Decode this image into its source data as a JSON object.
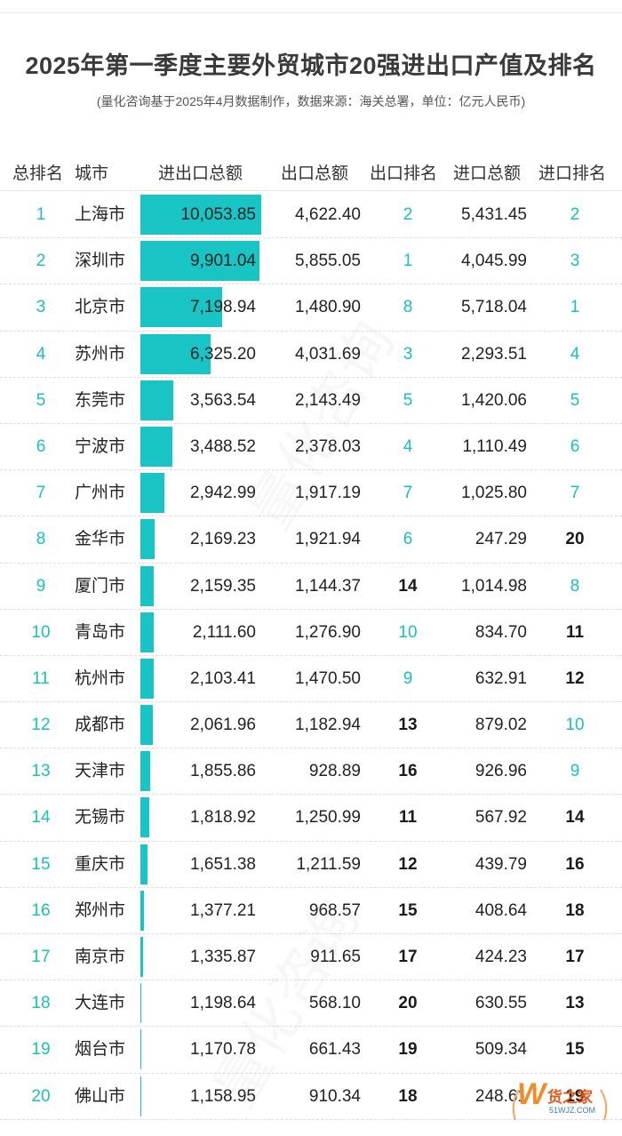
{
  "title": "2025年第一季度主要外贸城市20强进出口产值及排名",
  "subtitle": "(量化咨询基于2025年4月数据制作，数据来源：海关总署，单位：亿元人民币)",
  "columns": [
    "总排名",
    "城市",
    "进出口总额",
    "出口总额",
    "出口排名",
    "进口总额",
    "进口排名"
  ],
  "colors": {
    "accent": "#18c4c4",
    "rank_teal": "#18c0bf",
    "rank_dark": "#1a1a1a"
  },
  "logo": {
    "mark": "W",
    "text": "货之家",
    "sub": "51WJZ.COM"
  },
  "watermark": "量化咨询",
  "chart_data": {
    "type": "table",
    "title": "2025年第一季度主要外贸城市20强进出口产值及排名",
    "unit": "亿元人民币",
    "rows": [
      {
        "rank": "1",
        "city": "上海市",
        "total": "10,053.85",
        "total_value": 10053.85,
        "export": "4,622.40",
        "export_rank": "2",
        "import": "5,431.45",
        "import_rank": "2"
      },
      {
        "rank": "2",
        "city": "深圳市",
        "total": "9,901.04",
        "total_value": 9901.04,
        "export": "5,855.05",
        "export_rank": "1",
        "import": "4,045.99",
        "import_rank": "3"
      },
      {
        "rank": "3",
        "city": "北京市",
        "total": "7,198.94",
        "total_value": 7198.94,
        "export": "1,480.90",
        "export_rank": "8",
        "import": "5,718.04",
        "import_rank": "1"
      },
      {
        "rank": "4",
        "city": "苏州市",
        "total": "6,325.20",
        "total_value": 6325.2,
        "export": "4,031.69",
        "export_rank": "3",
        "import": "2,293.51",
        "import_rank": "4"
      },
      {
        "rank": "5",
        "city": "东莞市",
        "total": "3,563.54",
        "total_value": 3563.54,
        "export": "2,143.49",
        "export_rank": "5",
        "import": "1,420.06",
        "import_rank": "5"
      },
      {
        "rank": "6",
        "city": "宁波市",
        "total": "3,488.52",
        "total_value": 3488.52,
        "export": "2,378.03",
        "export_rank": "4",
        "import": "1,110.49",
        "import_rank": "6"
      },
      {
        "rank": "7",
        "city": "广州市",
        "total": "2,942.99",
        "total_value": 2942.99,
        "export": "1,917.19",
        "export_rank": "7",
        "import": "1,025.80",
        "import_rank": "7"
      },
      {
        "rank": "8",
        "city": "金华市",
        "total": "2,169.23",
        "total_value": 2169.23,
        "export": "1,921.94",
        "export_rank": "6",
        "import": "247.29",
        "import_rank": "20"
      },
      {
        "rank": "9",
        "city": "厦门市",
        "total": "2,159.35",
        "total_value": 2159.35,
        "export": "1,144.37",
        "export_rank": "14",
        "import": "1,014.98",
        "import_rank": "8"
      },
      {
        "rank": "10",
        "city": "青岛市",
        "total": "2,111.60",
        "total_value": 2111.6,
        "export": "1,276.90",
        "export_rank": "10",
        "import": "834.70",
        "import_rank": "11"
      },
      {
        "rank": "11",
        "city": "杭州市",
        "total": "2,103.41",
        "total_value": 2103.41,
        "export": "1,470.50",
        "export_rank": "9",
        "import": "632.91",
        "import_rank": "12"
      },
      {
        "rank": "12",
        "city": "成都市",
        "total": "2,061.96",
        "total_value": 2061.96,
        "export": "1,182.94",
        "export_rank": "13",
        "import": "879.02",
        "import_rank": "10"
      },
      {
        "rank": "13",
        "city": "天津市",
        "total": "1,855.86",
        "total_value": 1855.86,
        "export": "928.89",
        "export_rank": "16",
        "import": "926.96",
        "import_rank": "9"
      },
      {
        "rank": "14",
        "city": "无锡市",
        "total": "1,818.92",
        "total_value": 1818.92,
        "export": "1,250.99",
        "export_rank": "11",
        "import": "567.92",
        "import_rank": "14"
      },
      {
        "rank": "15",
        "city": "重庆市",
        "total": "1,651.38",
        "total_value": 1651.38,
        "export": "1,211.59",
        "export_rank": "12",
        "import": "439.79",
        "import_rank": "16"
      },
      {
        "rank": "16",
        "city": "郑州市",
        "total": "1,377.21",
        "total_value": 1377.21,
        "export": "968.57",
        "export_rank": "15",
        "import": "408.64",
        "import_rank": "18"
      },
      {
        "rank": "17",
        "city": "南京市",
        "total": "1,335.87",
        "total_value": 1335.87,
        "export": "911.65",
        "export_rank": "17",
        "import": "424.23",
        "import_rank": "17"
      },
      {
        "rank": "18",
        "city": "大连市",
        "total": "1,198.64",
        "total_value": 1198.64,
        "export": "568.10",
        "export_rank": "20",
        "import": "630.55",
        "import_rank": "13"
      },
      {
        "rank": "19",
        "city": "烟台市",
        "total": "1,170.78",
        "total_value": 1170.78,
        "export": "661.43",
        "export_rank": "19",
        "import": "509.34",
        "import_rank": "15"
      },
      {
        "rank": "20",
        "city": "佛山市",
        "total": "1,158.95",
        "total_value": 1158.95,
        "export": "910.34",
        "export_rank": "18",
        "import": "248.61",
        "import_rank": "19"
      }
    ],
    "bar_scale": {
      "min": 1150,
      "max": 10053.85
    }
  }
}
